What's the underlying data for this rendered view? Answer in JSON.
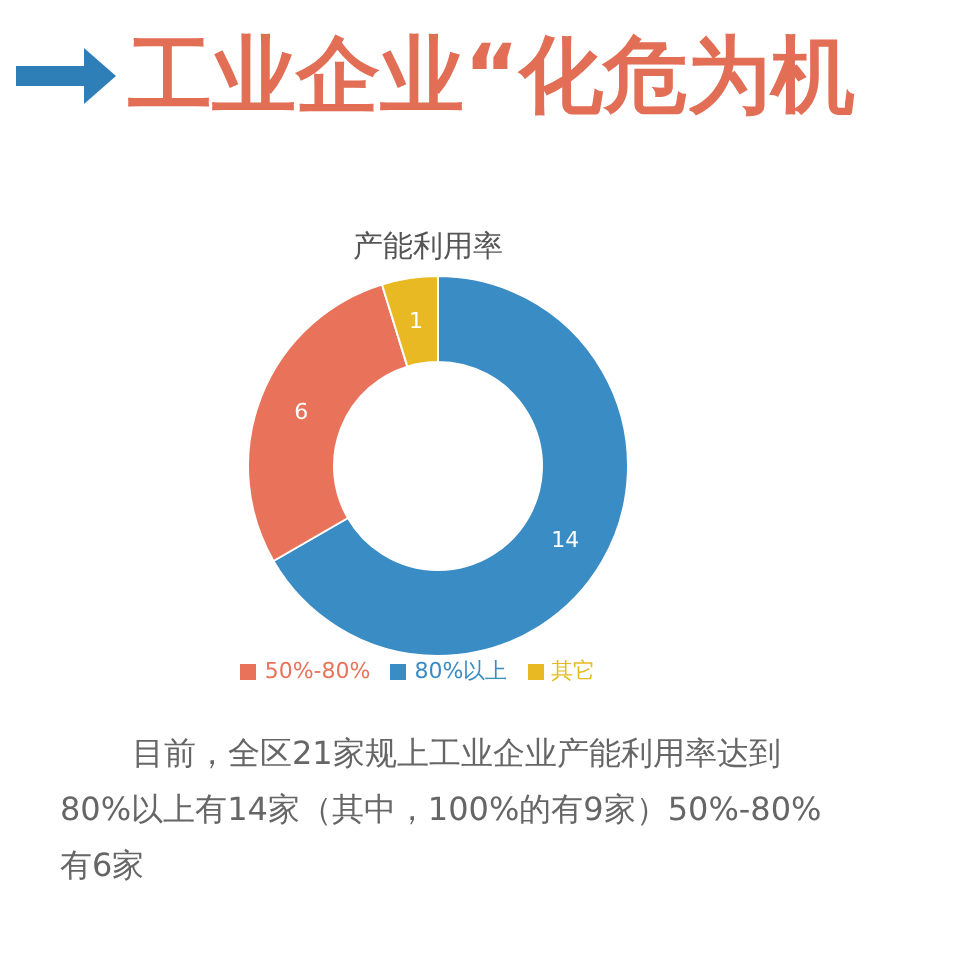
{
  "chart_data": {
    "type": "donut",
    "title": "工业企业“化危为机",
    "subtitle": "产能利用率",
    "categories": [
      "80%以上",
      "50%-80%",
      "其它"
    ],
    "values": [
      14,
      6,
      1
    ],
    "colors": [
      "#3a8cc5",
      "#e8735a",
      "#e8b923"
    ],
    "data_labels": true,
    "legend": "bottom",
    "annotations": [
      "目前，全区21家规上工业企业产能利用率达到80%以上有14家（其中，100%的有9家）50%-80%有6家"
    ]
  }
}
